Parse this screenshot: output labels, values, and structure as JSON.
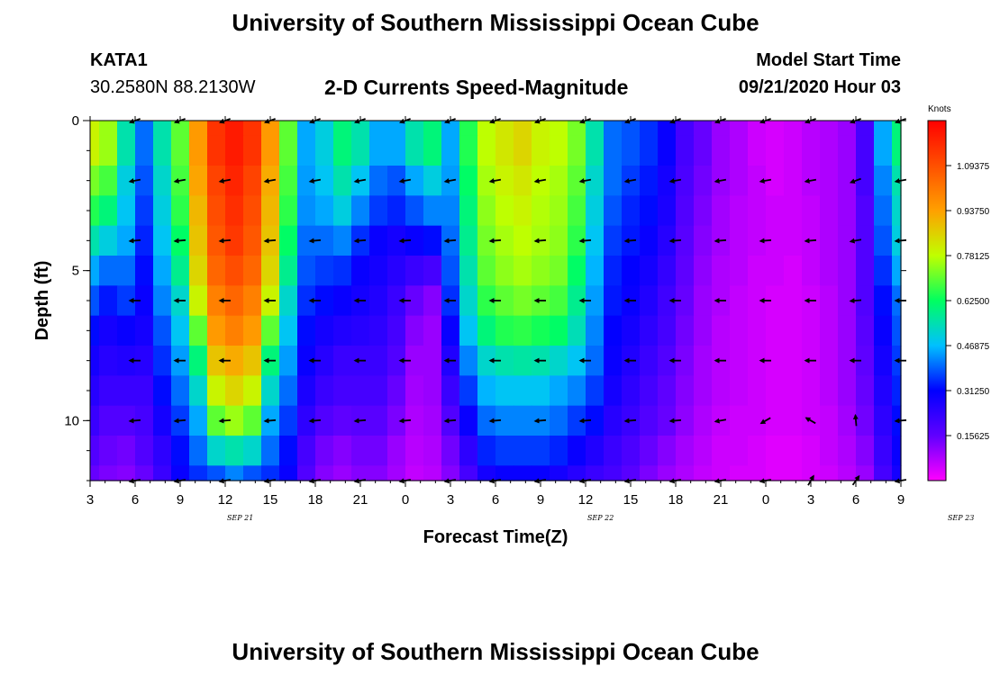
{
  "page": {
    "title_top": "University of Southern Mississippi Ocean Cube",
    "title_bottom": "University of Southern Mississippi Ocean Cube",
    "station_id": "KATA1",
    "coordinates": "30.2580N 88.2130W",
    "subtitle": "2-D Currents Speed-Magnitude",
    "model_start_label": "Model Start Time",
    "model_start_value": "09/21/2020 Hour 03"
  },
  "chart_data": {
    "type": "heatmap",
    "title": "2-D Currents Speed-Magnitude",
    "xlabel": "Forecast Time(Z)",
    "ylabel": "Depth (ft)",
    "xlim": [
      0,
      54
    ],
    "ylim": [
      12,
      0
    ],
    "x_tick_labels": [
      "3",
      "6",
      "9",
      "12",
      "15",
      "18",
      "21",
      "0",
      "3",
      "6",
      "9",
      "12",
      "15",
      "18",
      "21",
      "0",
      "3",
      "6",
      "9"
    ],
    "y_tick_values": [
      0,
      5,
      10
    ],
    "y_tick_labels": [
      "0",
      "5",
      "10"
    ],
    "date_labels": [
      {
        "hour": 10,
        "text": "SEP 21"
      },
      {
        "hour": 34,
        "text": "SEP 22"
      },
      {
        "hour": 58,
        "text": "SEP 23"
      }
    ],
    "colorbar": {
      "unit": "Knots",
      "min": 0.0,
      "max": 1.25,
      "tick_values": [
        1.09375,
        0.9375,
        0.78125,
        0.625,
        0.46875,
        0.3125,
        0.15625
      ],
      "tick_labels": [
        "1.09375",
        "0.93750",
        "0.78125",
        "0.62500",
        "0.46875",
        "0.31250",
        "0.15625"
      ]
    },
    "depth_levels_ft": [
      0,
      1,
      2,
      3,
      4,
      5,
      6,
      7,
      8,
      9,
      10,
      11,
      12
    ],
    "speed_knots_by_depth": [
      [
        0.8,
        0.75,
        0.55,
        0.4,
        0.55,
        0.7,
        0.95,
        1.15,
        1.2,
        1.15,
        0.95,
        0.7,
        0.45,
        0.5,
        0.6,
        0.55,
        0.45,
        0.45,
        0.55,
        0.6,
        0.45,
        0.65,
        0.78,
        0.82,
        0.85,
        0.8,
        0.78,
        0.72,
        0.55,
        0.4,
        0.38,
        0.35,
        0.3,
        0.2,
        0.15,
        0.1,
        0.08,
        0.05,
        0.04,
        0.05,
        0.07,
        0.08,
        0.1,
        0.2,
        0.45,
        0.6
      ],
      [
        0.8,
        0.75,
        0.55,
        0.4,
        0.55,
        0.7,
        0.95,
        1.15,
        1.2,
        1.15,
        0.95,
        0.7,
        0.45,
        0.5,
        0.6,
        0.55,
        0.45,
        0.45,
        0.55,
        0.6,
        0.45,
        0.65,
        0.78,
        0.82,
        0.85,
        0.8,
        0.78,
        0.72,
        0.55,
        0.4,
        0.38,
        0.35,
        0.3,
        0.2,
        0.15,
        0.1,
        0.08,
        0.05,
        0.04,
        0.05,
        0.07,
        0.08,
        0.1,
        0.2,
        0.45,
        0.6
      ],
      [
        0.72,
        0.68,
        0.5,
        0.38,
        0.52,
        0.68,
        0.93,
        1.12,
        1.18,
        1.12,
        0.92,
        0.68,
        0.44,
        0.48,
        0.55,
        0.48,
        0.4,
        0.38,
        0.45,
        0.5,
        0.44,
        0.62,
        0.76,
        0.8,
        0.82,
        0.78,
        0.76,
        0.7,
        0.52,
        0.4,
        0.36,
        0.33,
        0.28,
        0.19,
        0.14,
        0.1,
        0.08,
        0.06,
        0.04,
        0.05,
        0.07,
        0.08,
        0.1,
        0.2,
        0.42,
        0.55
      ],
      [
        0.65,
        0.6,
        0.48,
        0.36,
        0.5,
        0.66,
        0.9,
        1.1,
        1.16,
        1.1,
        0.9,
        0.66,
        0.43,
        0.45,
        0.5,
        0.42,
        0.36,
        0.34,
        0.38,
        0.42,
        0.42,
        0.6,
        0.74,
        0.78,
        0.8,
        0.77,
        0.75,
        0.68,
        0.5,
        0.38,
        0.34,
        0.32,
        0.27,
        0.18,
        0.13,
        0.09,
        0.07,
        0.06,
        0.05,
        0.05,
        0.06,
        0.08,
        0.1,
        0.18,
        0.4,
        0.52
      ],
      [
        0.55,
        0.5,
        0.45,
        0.34,
        0.48,
        0.62,
        0.88,
        1.08,
        1.14,
        1.08,
        0.88,
        0.62,
        0.4,
        0.4,
        0.42,
        0.35,
        0.3,
        0.28,
        0.3,
        0.32,
        0.4,
        0.58,
        0.72,
        0.76,
        0.78,
        0.76,
        0.74,
        0.66,
        0.48,
        0.36,
        0.33,
        0.3,
        0.25,
        0.17,
        0.12,
        0.09,
        0.07,
        0.06,
        0.05,
        0.05,
        0.06,
        0.08,
        0.1,
        0.18,
        0.38,
        0.5
      ],
      [
        0.45,
        0.4,
        0.4,
        0.32,
        0.45,
        0.58,
        0.85,
        1.05,
        1.1,
        1.05,
        0.85,
        0.58,
        0.38,
        0.36,
        0.35,
        0.3,
        0.28,
        0.25,
        0.22,
        0.2,
        0.38,
        0.55,
        0.7,
        0.74,
        0.76,
        0.74,
        0.72,
        0.62,
        0.46,
        0.34,
        0.31,
        0.28,
        0.23,
        0.16,
        0.11,
        0.08,
        0.07,
        0.05,
        0.05,
        0.04,
        0.06,
        0.08,
        0.1,
        0.18,
        0.35,
        0.45
      ],
      [
        0.38,
        0.33,
        0.36,
        0.3,
        0.42,
        0.52,
        0.8,
        1.0,
        1.05,
        1.0,
        0.8,
        0.52,
        0.35,
        0.32,
        0.3,
        0.28,
        0.26,
        0.22,
        0.15,
        0.12,
        0.35,
        0.52,
        0.66,
        0.7,
        0.72,
        0.7,
        0.68,
        0.58,
        0.44,
        0.33,
        0.3,
        0.26,
        0.21,
        0.15,
        0.1,
        0.08,
        0.06,
        0.05,
        0.04,
        0.04,
        0.05,
        0.07,
        0.1,
        0.18,
        0.32,
        0.4
      ],
      [
        0.32,
        0.28,
        0.3,
        0.28,
        0.38,
        0.48,
        0.7,
        0.95,
        1.0,
        0.95,
        0.7,
        0.48,
        0.32,
        0.28,
        0.26,
        0.25,
        0.24,
        0.2,
        0.12,
        0.1,
        0.3,
        0.48,
        0.6,
        0.65,
        0.66,
        0.64,
        0.62,
        0.54,
        0.42,
        0.31,
        0.28,
        0.24,
        0.2,
        0.14,
        0.1,
        0.07,
        0.06,
        0.05,
        0.04,
        0.04,
        0.05,
        0.07,
        0.1,
        0.17,
        0.3,
        0.38
      ],
      [
        0.28,
        0.25,
        0.26,
        0.25,
        0.35,
        0.44,
        0.6,
        0.88,
        0.92,
        0.88,
        0.6,
        0.44,
        0.3,
        0.25,
        0.22,
        0.22,
        0.22,
        0.18,
        0.1,
        0.1,
        0.26,
        0.42,
        0.52,
        0.55,
        0.56,
        0.55,
        0.52,
        0.48,
        0.4,
        0.3,
        0.26,
        0.22,
        0.18,
        0.13,
        0.09,
        0.07,
        0.06,
        0.05,
        0.04,
        0.04,
        0.05,
        0.07,
        0.1,
        0.16,
        0.28,
        0.36
      ],
      [
        0.25,
        0.22,
        0.22,
        0.22,
        0.32,
        0.4,
        0.52,
        0.8,
        0.85,
        0.8,
        0.52,
        0.4,
        0.27,
        0.22,
        0.2,
        0.2,
        0.2,
        0.15,
        0.09,
        0.1,
        0.22,
        0.36,
        0.46,
        0.48,
        0.48,
        0.48,
        0.45,
        0.42,
        0.36,
        0.28,
        0.24,
        0.2,
        0.16,
        0.12,
        0.09,
        0.07,
        0.06,
        0.05,
        0.04,
        0.04,
        0.05,
        0.07,
        0.1,
        0.15,
        0.26,
        0.34
      ],
      [
        0.22,
        0.18,
        0.18,
        0.2,
        0.28,
        0.36,
        0.45,
        0.7,
        0.75,
        0.7,
        0.45,
        0.36,
        0.24,
        0.18,
        0.16,
        0.17,
        0.17,
        0.13,
        0.08,
        0.09,
        0.18,
        0.3,
        0.4,
        0.42,
        0.42,
        0.42,
        0.4,
        0.36,
        0.32,
        0.25,
        0.22,
        0.18,
        0.15,
        0.11,
        0.08,
        0.06,
        0.05,
        0.05,
        0.04,
        0.04,
        0.05,
        0.06,
        0.09,
        0.14,
        0.24,
        0.32
      ],
      [
        0.18,
        0.15,
        0.14,
        0.18,
        0.24,
        0.32,
        0.4,
        0.52,
        0.55,
        0.52,
        0.4,
        0.32,
        0.2,
        0.14,
        0.12,
        0.14,
        0.14,
        0.1,
        0.07,
        0.08,
        0.14,
        0.24,
        0.34,
        0.36,
        0.36,
        0.36,
        0.34,
        0.3,
        0.26,
        0.22,
        0.19,
        0.15,
        0.12,
        0.09,
        0.07,
        0.05,
        0.05,
        0.04,
        0.03,
        0.03,
        0.04,
        0.06,
        0.08,
        0.12,
        0.22,
        0.3
      ],
      [
        0.15,
        0.13,
        0.12,
        0.15,
        0.22,
        0.3,
        0.35,
        0.38,
        0.42,
        0.38,
        0.35,
        0.3,
        0.18,
        0.12,
        0.1,
        0.12,
        0.12,
        0.09,
        0.06,
        0.07,
        0.12,
        0.2,
        0.28,
        0.3,
        0.3,
        0.3,
        0.28,
        0.25,
        0.22,
        0.2,
        0.17,
        0.13,
        0.1,
        0.08,
        0.06,
        0.05,
        0.04,
        0.04,
        0.03,
        0.03,
        0.04,
        0.05,
        0.07,
        0.1,
        0.2,
        0.28
      ]
    ],
    "vectors": {
      "times_hours": [
        3,
        6,
        9,
        12,
        15,
        18,
        21,
        24,
        27,
        30,
        33,
        36,
        39,
        42,
        45,
        48,
        51,
        54
      ],
      "depths_ft": [
        0,
        2,
        4,
        6,
        8,
        10,
        12
      ],
      "direction_deg": [
        [
          200,
          200,
          200,
          200,
          200,
          200,
          200,
          200,
          200,
          200,
          200,
          200,
          200,
          200,
          200,
          200,
          200,
          200
        ],
        [
          190,
          190,
          190,
          190,
          190,
          190,
          190,
          190,
          190,
          190,
          190,
          190,
          190,
          190,
          190,
          190,
          200,
          190
        ],
        [
          185,
          185,
          185,
          185,
          185,
          185,
          185,
          185,
          185,
          185,
          185,
          185,
          185,
          185,
          185,
          185,
          190,
          185
        ],
        [
          180,
          180,
          180,
          180,
          180,
          180,
          180,
          180,
          180,
          180,
          180,
          180,
          180,
          180,
          180,
          180,
          185,
          180
        ],
        [
          180,
          180,
          180,
          180,
          180,
          180,
          180,
          180,
          180,
          180,
          180,
          180,
          180,
          180,
          180,
          180,
          180,
          180
        ],
        [
          185,
          185,
          185,
          185,
          185,
          185,
          185,
          185,
          185,
          185,
          185,
          185,
          185,
          190,
          210,
          150,
          95,
          185
        ],
        [
          190,
          190,
          190,
          190,
          190,
          190,
          190,
          190,
          190,
          190,
          190,
          190,
          190,
          190,
          190,
          60,
          55,
          190
        ]
      ]
    }
  }
}
